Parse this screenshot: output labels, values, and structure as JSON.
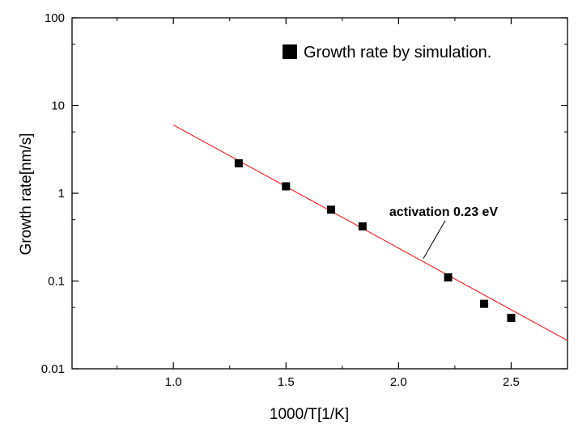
{
  "chart_data": {
    "type": "scatter",
    "title": "",
    "xlabel": "1000/T[1/K]",
    "ylabel": "Growth rate[nm/s]",
    "xlim": [
      0.55,
      2.75
    ],
    "ylim": [
      0.01,
      100
    ],
    "yscale": "log",
    "x_ticks": [
      1.0,
      1.5,
      2.0,
      2.5
    ],
    "x_tick_labels": [
      "1.0",
      "1.5",
      "2.0",
      "2.5"
    ],
    "y_ticks": [
      0.01,
      0.1,
      1,
      10,
      100
    ],
    "y_tick_labels": [
      "0.01",
      "0.1",
      "1",
      "10",
      "100"
    ],
    "grid": false,
    "legend_position": "top-right",
    "series": [
      {
        "name": "Growth rate by simulation.",
        "marker": "square",
        "color": "#000000",
        "x": [
          1.29,
          1.5,
          1.7,
          1.84,
          2.22,
          2.38,
          2.5
        ],
        "y": [
          2.2,
          1.2,
          0.65,
          0.42,
          0.11,
          0.055,
          0.038
        ]
      }
    ],
    "fit_line": {
      "color": "#ff0000",
      "x": [
        1.0,
        2.75
      ],
      "y": [
        6.0,
        0.021
      ]
    },
    "annotation": {
      "text": "activation 0.23 eV",
      "point": [
        2.11,
        0.18
      ]
    }
  }
}
